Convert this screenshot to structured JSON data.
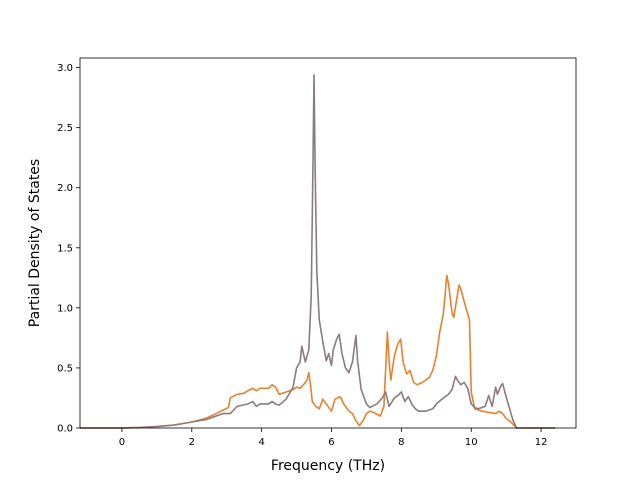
{
  "chart_data": {
    "type": "line",
    "title": "",
    "xlabel": "Frequency (THz)",
    "ylabel": "Partial Density of States",
    "xlim": [
      -1.2,
      13.0
    ],
    "ylim": [
      0.0,
      3.08
    ],
    "xticks": [
      0,
      2,
      4,
      6,
      8,
      10,
      12
    ],
    "xtick_labels": [
      "0",
      "2",
      "4",
      "6",
      "8",
      "10",
      "12"
    ],
    "yticks": [
      0.0,
      0.5,
      1.0,
      1.5,
      2.0,
      2.5,
      3.0
    ],
    "ytick_labels": [
      "0.0",
      "0.5",
      "1.0",
      "1.5",
      "2.0",
      "2.5",
      "3.0"
    ],
    "grid": false,
    "legend": "none",
    "series": [
      {
        "color": "#e6822f",
        "points": [
          [
            -1.2,
            0.0
          ],
          [
            0.0,
            0.0
          ],
          [
            0.5,
            0.004
          ],
          [
            1.0,
            0.012
          ],
          [
            1.5,
            0.025
          ],
          [
            2.0,
            0.05
          ],
          [
            2.4,
            0.08
          ],
          [
            2.7,
            0.12
          ],
          [
            2.9,
            0.15
          ],
          [
            3.05,
            0.17
          ],
          [
            3.1,
            0.25
          ],
          [
            3.3,
            0.28
          ],
          [
            3.5,
            0.29
          ],
          [
            3.6,
            0.31
          ],
          [
            3.75,
            0.33
          ],
          [
            3.85,
            0.31
          ],
          [
            3.95,
            0.33
          ],
          [
            4.2,
            0.33
          ],
          [
            4.3,
            0.36
          ],
          [
            4.4,
            0.34
          ],
          [
            4.5,
            0.28
          ],
          [
            4.7,
            0.3
          ],
          [
            4.9,
            0.32
          ],
          [
            5.0,
            0.34
          ],
          [
            5.1,
            0.33
          ],
          [
            5.2,
            0.36
          ],
          [
            5.3,
            0.4
          ],
          [
            5.35,
            0.46
          ],
          [
            5.4,
            0.36
          ],
          [
            5.45,
            0.22
          ],
          [
            5.55,
            0.18
          ],
          [
            5.65,
            0.16
          ],
          [
            5.75,
            0.24
          ],
          [
            5.85,
            0.2
          ],
          [
            6.0,
            0.14
          ],
          [
            6.1,
            0.24
          ],
          [
            6.25,
            0.26
          ],
          [
            6.35,
            0.2
          ],
          [
            6.5,
            0.14
          ],
          [
            6.6,
            0.12
          ],
          [
            6.7,
            0.06
          ],
          [
            6.8,
            0.02
          ],
          [
            6.9,
            0.06
          ],
          [
            7.0,
            0.12
          ],
          [
            7.1,
            0.14
          ],
          [
            7.2,
            0.13
          ],
          [
            7.4,
            0.1
          ],
          [
            7.5,
            0.18
          ],
          [
            7.6,
            0.8
          ],
          [
            7.65,
            0.55
          ],
          [
            7.7,
            0.4
          ],
          [
            7.8,
            0.6
          ],
          [
            7.9,
            0.7
          ],
          [
            7.98,
            0.74
          ],
          [
            8.05,
            0.55
          ],
          [
            8.15,
            0.45
          ],
          [
            8.25,
            0.48
          ],
          [
            8.35,
            0.38
          ],
          [
            8.45,
            0.36
          ],
          [
            8.6,
            0.38
          ],
          [
            8.8,
            0.42
          ],
          [
            8.9,
            0.48
          ],
          [
            9.0,
            0.6
          ],
          [
            9.1,
            0.8
          ],
          [
            9.2,
            0.95
          ],
          [
            9.25,
            1.1
          ],
          [
            9.3,
            1.27
          ],
          [
            9.35,
            1.2
          ],
          [
            9.45,
            0.96
          ],
          [
            9.5,
            0.92
          ],
          [
            9.6,
            1.1
          ],
          [
            9.65,
            1.19
          ],
          [
            9.7,
            1.16
          ],
          [
            9.8,
            1.05
          ],
          [
            9.9,
            0.95
          ],
          [
            9.95,
            0.9
          ],
          [
            10.0,
            0.3
          ],
          [
            10.1,
            0.16
          ],
          [
            10.3,
            0.14
          ],
          [
            10.5,
            0.13
          ],
          [
            10.7,
            0.12
          ],
          [
            10.8,
            0.14
          ],
          [
            10.9,
            0.12
          ],
          [
            11.0,
            0.08
          ],
          [
            11.1,
            0.06
          ],
          [
            11.2,
            0.03
          ],
          [
            11.3,
            0.0
          ],
          [
            12.4,
            0.0
          ]
        ]
      },
      {
        "color": "#8c7a7e",
        "points": [
          [
            -1.2,
            0.0
          ],
          [
            0.0,
            0.0
          ],
          [
            0.5,
            0.004
          ],
          [
            1.0,
            0.012
          ],
          [
            1.5,
            0.025
          ],
          [
            2.0,
            0.05
          ],
          [
            2.4,
            0.07
          ],
          [
            2.7,
            0.1
          ],
          [
            2.9,
            0.12
          ],
          [
            3.1,
            0.12
          ],
          [
            3.3,
            0.18
          ],
          [
            3.6,
            0.2
          ],
          [
            3.75,
            0.22
          ],
          [
            3.85,
            0.18
          ],
          [
            3.95,
            0.2
          ],
          [
            4.2,
            0.2
          ],
          [
            4.3,
            0.22
          ],
          [
            4.4,
            0.2
          ],
          [
            4.5,
            0.19
          ],
          [
            4.7,
            0.24
          ],
          [
            4.9,
            0.34
          ],
          [
            5.0,
            0.5
          ],
          [
            5.1,
            0.55
          ],
          [
            5.15,
            0.68
          ],
          [
            5.25,
            0.55
          ],
          [
            5.35,
            0.65
          ],
          [
            5.42,
            1.1
          ],
          [
            5.47,
            2.2
          ],
          [
            5.5,
            2.94
          ],
          [
            5.53,
            2.2
          ],
          [
            5.58,
            1.3
          ],
          [
            5.65,
            0.9
          ],
          [
            5.75,
            0.72
          ],
          [
            5.85,
            0.56
          ],
          [
            5.92,
            0.62
          ],
          [
            6.0,
            0.52
          ],
          [
            6.05,
            0.65
          ],
          [
            6.15,
            0.74
          ],
          [
            6.22,
            0.78
          ],
          [
            6.3,
            0.62
          ],
          [
            6.4,
            0.5
          ],
          [
            6.5,
            0.46
          ],
          [
            6.6,
            0.55
          ],
          [
            6.7,
            0.77
          ],
          [
            6.75,
            0.55
          ],
          [
            6.85,
            0.32
          ],
          [
            7.0,
            0.2
          ],
          [
            7.1,
            0.17
          ],
          [
            7.3,
            0.2
          ],
          [
            7.45,
            0.25
          ],
          [
            7.55,
            0.3
          ],
          [
            7.65,
            0.18
          ],
          [
            7.8,
            0.25
          ],
          [
            7.9,
            0.27
          ],
          [
            8.0,
            0.3
          ],
          [
            8.1,
            0.22
          ],
          [
            8.2,
            0.26
          ],
          [
            8.3,
            0.2
          ],
          [
            8.4,
            0.16
          ],
          [
            8.5,
            0.14
          ],
          [
            8.7,
            0.14
          ],
          [
            8.9,
            0.16
          ],
          [
            9.0,
            0.2
          ],
          [
            9.2,
            0.25
          ],
          [
            9.35,
            0.28
          ],
          [
            9.45,
            0.32
          ],
          [
            9.55,
            0.43
          ],
          [
            9.6,
            0.4
          ],
          [
            9.7,
            0.36
          ],
          [
            9.8,
            0.38
          ],
          [
            9.9,
            0.33
          ],
          [
            10.0,
            0.2
          ],
          [
            10.1,
            0.17
          ],
          [
            10.2,
            0.16
          ],
          [
            10.4,
            0.18
          ],
          [
            10.5,
            0.27
          ],
          [
            10.6,
            0.18
          ],
          [
            10.7,
            0.34
          ],
          [
            10.75,
            0.28
          ],
          [
            10.85,
            0.35
          ],
          [
            10.9,
            0.37
          ],
          [
            11.0,
            0.26
          ],
          [
            11.1,
            0.16
          ],
          [
            11.2,
            0.06
          ],
          [
            11.3,
            0.0
          ],
          [
            12.4,
            0.0
          ]
        ]
      }
    ]
  }
}
